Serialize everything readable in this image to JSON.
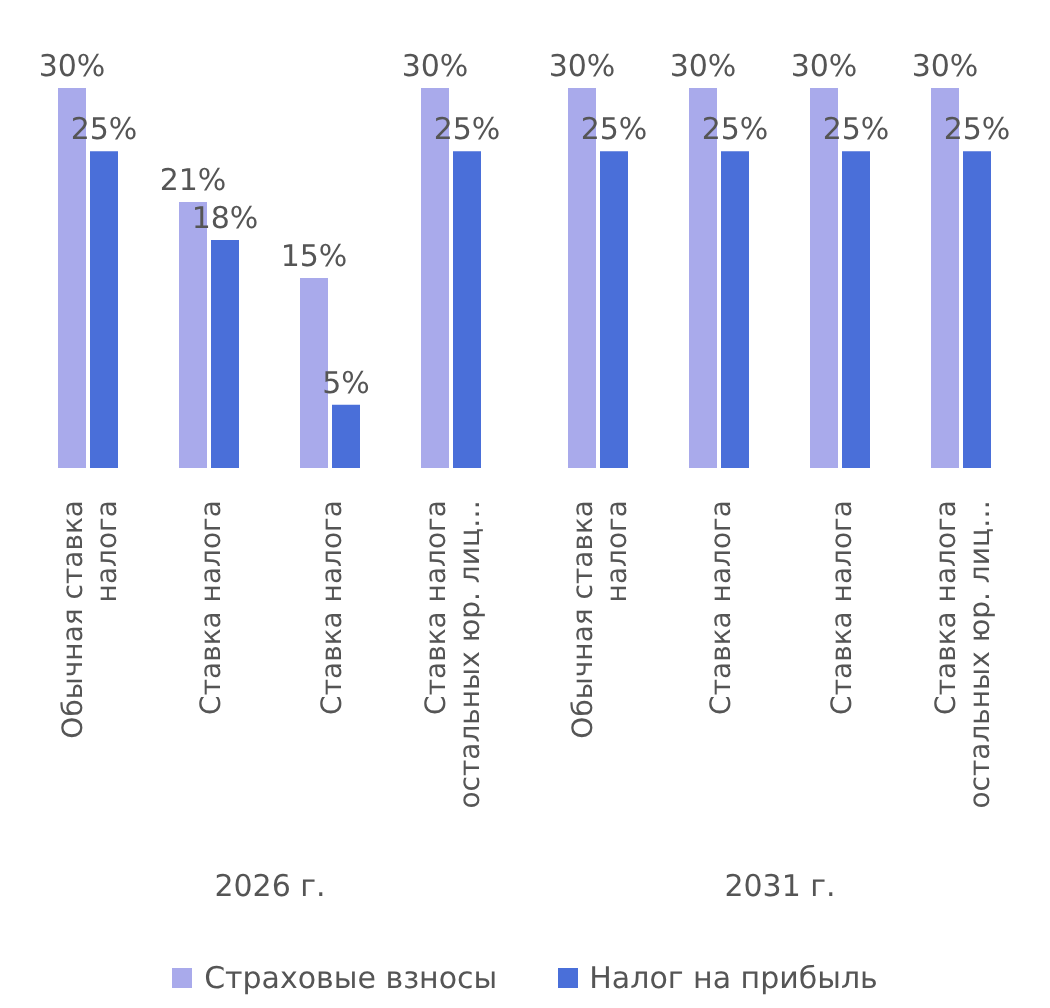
{
  "chart_data": [
    {
      "type": "bar",
      "xlabel": "2026 г.",
      "categories": [
        "Обычная ставка налога",
        "Ставка налога",
        "Ставка налога",
        "Ставка налога остальных юр. лиц…"
      ],
      "legend": "bottom",
      "series": [
        {
          "name": "Страховые взносы",
          "color": "#a9aaeb",
          "values": [
            30,
            21,
            15,
            30
          ],
          "value_labels": [
            "30%",
            "21%",
            "15%",
            "30%"
          ]
        },
        {
          "name": "Налог на прибыль",
          "color": "#4a6fd9",
          "values": [
            25,
            18,
            5,
            25
          ],
          "value_labels": [
            "25%",
            "18%",
            "5%",
            "25%"
          ]
        }
      ]
    },
    {
      "type": "bar",
      "xlabel": "2031 г.",
      "categories": [
        "Обычная ставка налога",
        "Ставка налога",
        "Ставка налога",
        "Ставка налога остальных юр. лиц…"
      ],
      "series": [
        {
          "name": "Страховые взносы",
          "color": "#a9aaeb",
          "values": [
            30,
            30,
            30,
            30
          ],
          "value_labels": [
            "30%",
            "30%",
            "30%",
            "30%"
          ]
        },
        {
          "name": "Налог на прибыль",
          "color": "#4a6fd9",
          "values": [
            25,
            25,
            25,
            25
          ],
          "value_labels": [
            "25%",
            "25%",
            "25%",
            "25%"
          ]
        }
      ]
    }
  ]
}
